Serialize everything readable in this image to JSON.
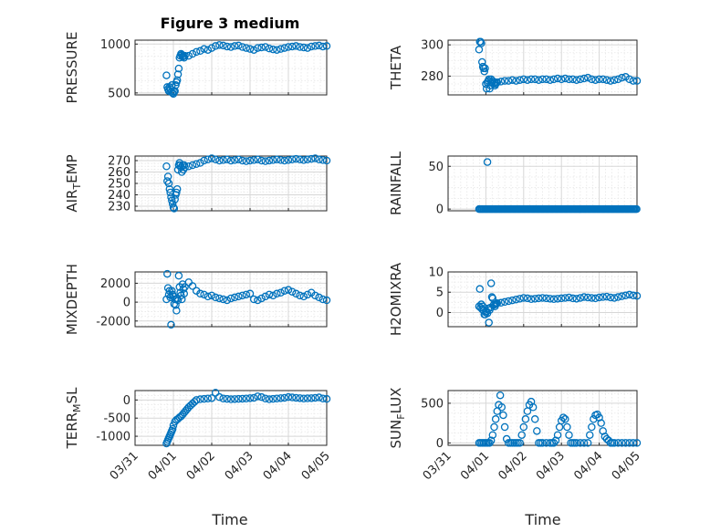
{
  "title": "Figure 3 medium",
  "xlabel": "Time",
  "x_tick_labels": [
    "03/31",
    "04/01",
    "04/02",
    "04/03",
    "04/04",
    "04/05"
  ],
  "colors": {
    "marker": "#0072BD",
    "axis": "#262626",
    "grid": "#d7d7d7",
    "background": "#ffffff"
  },
  "chart_data": [
    {
      "type": "scatter",
      "id": "pressure",
      "ylabel": "PRESSURE",
      "ylim": [
        480,
        1040
      ],
      "yticks": [
        500,
        1000
      ],
      "ytick_labels": [
        "500",
        "1000"
      ],
      "xlim": [
        0,
        5
      ],
      "x": [
        0.82,
        0.84,
        0.86,
        0.88,
        0.9,
        0.92,
        0.94,
        0.96,
        0.98,
        1.0,
        1.02,
        1.04,
        1.06,
        1.08,
        1.1,
        1.12,
        1.14,
        1.16,
        1.18,
        1.2,
        1.22,
        1.24,
        1.26,
        1.28,
        1.3,
        1.4,
        1.5,
        1.6,
        1.7,
        1.8,
        1.9,
        2.0,
        2.1,
        2.2,
        2.3,
        2.4,
        2.5,
        2.6,
        2.7,
        2.8,
        2.9,
        3.0,
        3.1,
        3.2,
        3.3,
        3.4,
        3.5,
        3.6,
        3.7,
        3.8,
        3.9,
        4.0,
        4.1,
        4.2,
        4.3,
        4.4,
        4.5,
        4.6,
        4.7,
        4.8,
        4.9,
        5.0
      ],
      "y": [
        680,
        560,
        540,
        520,
        560,
        540,
        510,
        580,
        500,
        490,
        510,
        520,
        580,
        610,
        630,
        690,
        750,
        860,
        880,
        900,
        890,
        870,
        880,
        860,
        880,
        880,
        900,
        920,
        930,
        950,
        940,
        960,
        980,
        990,
        985,
        975,
        970,
        980,
        985,
        970,
        960,
        950,
        940,
        960,
        965,
        970,
        955,
        945,
        940,
        950,
        960,
        970,
        975,
        980,
        970,
        965,
        960,
        975,
        980,
        985,
        975,
        980
      ]
    },
    {
      "type": "scatter",
      "id": "theta",
      "ylabel": "THETA",
      "ylim": [
        268,
        303
      ],
      "yticks": [
        280,
        300
      ],
      "ytick_labels": [
        "280",
        "300"
      ],
      "xlim": [
        0,
        5
      ],
      "x": [
        0.82,
        0.84,
        0.86,
        0.88,
        0.9,
        0.92,
        0.94,
        0.96,
        0.98,
        1.0,
        1.02,
        1.04,
        1.06,
        1.08,
        1.1,
        1.12,
        1.14,
        1.16,
        1.18,
        1.2,
        1.22,
        1.24,
        1.26,
        1.28,
        1.3,
        1.4,
        1.5,
        1.6,
        1.7,
        1.8,
        1.9,
        2.0,
        2.1,
        2.2,
        2.3,
        2.4,
        2.5,
        2.6,
        2.7,
        2.8,
        2.9,
        3.0,
        3.1,
        3.2,
        3.3,
        3.4,
        3.5,
        3.6,
        3.7,
        3.8,
        3.9,
        4.0,
        4.1,
        4.2,
        4.3,
        4.4,
        4.5,
        4.6,
        4.7,
        4.8,
        4.9,
        5.0
      ],
      "y": [
        297,
        302,
        302,
        301,
        289,
        286,
        285,
        283,
        285,
        275,
        272,
        276,
        277,
        278,
        272,
        274,
        278,
        276,
        277,
        275,
        276,
        274,
        275,
        276,
        276,
        276.5,
        277,
        277,
        277.5,
        277,
        277.5,
        278,
        277.5,
        278,
        278,
        277.5,
        278,
        278,
        277.5,
        278,
        278.5,
        278,
        278.5,
        278,
        278,
        277.5,
        278,
        278.5,
        279,
        278,
        277.5,
        278,
        278,
        277.5,
        277,
        277.5,
        278,
        279,
        279.5,
        278,
        277,
        277
      ]
    },
    {
      "type": "scatter",
      "id": "air_temp",
      "ylabel": "AIR_TEMP",
      "ylim": [
        226,
        274
      ],
      "yticks": [
        230,
        240,
        250,
        260,
        270
      ],
      "ytick_labels": [
        "230",
        "240",
        "250",
        "260",
        "270"
      ],
      "xlim": [
        0,
        5
      ],
      "x": [
        0.82,
        0.84,
        0.86,
        0.88,
        0.9,
        0.92,
        0.94,
        0.96,
        0.98,
        1.0,
        1.02,
        1.04,
        1.06,
        1.08,
        1.1,
        1.12,
        1.14,
        1.16,
        1.18,
        1.2,
        1.22,
        1.24,
        1.26,
        1.28,
        1.3,
        1.4,
        1.5,
        1.6,
        1.7,
        1.8,
        1.9,
        2.0,
        2.1,
        2.2,
        2.3,
        2.4,
        2.5,
        2.6,
        2.7,
        2.8,
        2.9,
        3.0,
        3.1,
        3.2,
        3.3,
        3.4,
        3.5,
        3.6,
        3.7,
        3.8,
        3.9,
        4.0,
        4.1,
        4.2,
        4.3,
        4.4,
        4.5,
        4.6,
        4.7,
        4.8,
        4.9,
        5.0
      ],
      "y": [
        265,
        252,
        256,
        250,
        245,
        242,
        238,
        235,
        232,
        229,
        228,
        236,
        240,
        242,
        245,
        262,
        266,
        268,
        266,
        264,
        260,
        266,
        262,
        266,
        264,
        265,
        266,
        267,
        268,
        270,
        271,
        272,
        271,
        270,
        270.5,
        271,
        270,
        270.5,
        271,
        270,
        269.5,
        270,
        270.5,
        271,
        270,
        269.5,
        270,
        270.5,
        271,
        270.5,
        270,
        270.5,
        271,
        271.5,
        271,
        270.5,
        271,
        271.5,
        272,
        271,
        270.5,
        270
      ]
    },
    {
      "type": "scatter",
      "id": "rainfall",
      "ylabel": "RAINFALL",
      "ylim": [
        -2,
        62
      ],
      "yticks": [
        0,
        50
      ],
      "ytick_labels": [
        "0",
        "50"
      ],
      "xlim": [
        0,
        5
      ],
      "x": [
        1.04
      ],
      "y": [
        55
      ],
      "series": [
        {
          "name": "zero_run",
          "x_range": [
            0.82,
            5.0
          ],
          "value": 0
        }
      ]
    },
    {
      "type": "scatter",
      "id": "mixdepth",
      "ylabel": "MIXDEPTH",
      "ylim": [
        -2600,
        3200
      ],
      "yticks": [
        -2000,
        0,
        2000
      ],
      "ytick_labels": [
        "-2000",
        "0",
        "2000"
      ],
      "xlim": [
        0,
        5
      ],
      "x": [
        0.82,
        0.84,
        0.86,
        0.88,
        0.9,
        0.92,
        0.94,
        0.96,
        0.98,
        1.0,
        1.02,
        1.04,
        1.06,
        1.08,
        1.1,
        1.12,
        1.14,
        1.16,
        1.18,
        1.2,
        1.22,
        1.24,
        1.26,
        1.28,
        1.3,
        1.4,
        1.5,
        1.6,
        1.7,
        1.8,
        1.9,
        2.0,
        2.1,
        2.2,
        2.3,
        2.4,
        2.5,
        2.6,
        2.7,
        2.8,
        2.9,
        3.0,
        3.1,
        3.2,
        3.3,
        3.4,
        3.5,
        3.6,
        3.7,
        3.8,
        3.9,
        4.0,
        4.1,
        4.2,
        4.3,
        4.4,
        4.5,
        4.6,
        4.7,
        4.8,
        4.9,
        5.0
      ],
      "y": [
        300,
        3000,
        1500,
        800,
        1200,
        500,
        -2400,
        1200,
        800,
        600,
        -200,
        300,
        -300,
        -900,
        400,
        200,
        2800,
        1600,
        1000,
        700,
        300,
        1900,
        1400,
        900,
        1600,
        2100,
        1700,
        1200,
        900,
        800,
        600,
        700,
        500,
        400,
        300,
        200,
        400,
        500,
        600,
        700,
        800,
        900,
        300,
        200,
        400,
        600,
        800,
        700,
        900,
        1000,
        1200,
        1300,
        1100,
        900,
        700,
        600,
        800,
        1000,
        700,
        500,
        300,
        200
      ]
    },
    {
      "type": "scatter",
      "id": "h2omixra",
      "ylabel": "H2OMIXRA",
      "ylim": [
        -3.5,
        10
      ],
      "yticks": [
        0,
        5,
        10
      ],
      "ytick_labels": [
        "0",
        "5",
        "10"
      ],
      "xlim": [
        0,
        5
      ],
      "x": [
        0.82,
        0.84,
        0.86,
        0.88,
        0.9,
        0.92,
        0.94,
        0.96,
        0.98,
        1.0,
        1.02,
        1.04,
        1.06,
        1.08,
        1.1,
        1.12,
        1.14,
        1.16,
        1.18,
        1.2,
        1.22,
        1.24,
        1.26,
        1.28,
        1.3,
        1.4,
        1.5,
        1.6,
        1.7,
        1.8,
        1.9,
        2.0,
        2.1,
        2.2,
        2.3,
        2.4,
        2.5,
        2.6,
        2.7,
        2.8,
        2.9,
        3.0,
        3.1,
        3.2,
        3.3,
        3.4,
        3.5,
        3.6,
        3.7,
        3.8,
        3.9,
        4.0,
        4.1,
        4.2,
        4.3,
        4.4,
        4.5,
        4.6,
        4.7,
        4.8,
        4.9,
        5.0
      ],
      "y": [
        1.5,
        5.8,
        1.2,
        2.0,
        0.8,
        1.5,
        0.5,
        -0.5,
        -0.5,
        0.0,
        0.3,
        -0.2,
        1.0,
        -2.5,
        0.6,
        1.2,
        7.2,
        3.8,
        3.5,
        1.8,
        2.0,
        1.5,
        2.0,
        2.2,
        2.3,
        2.4,
        2.6,
        2.8,
        3.0,
        3.2,
        3.4,
        3.6,
        3.5,
        3.3,
        3.4,
        3.5,
        3.6,
        3.5,
        3.4,
        3.3,
        3.4,
        3.5,
        3.6,
        3.7,
        3.5,
        3.4,
        3.6,
        3.8,
        3.7,
        3.6,
        3.5,
        3.7,
        3.8,
        3.9,
        3.7,
        3.6,
        3.8,
        4.0,
        4.2,
        4.4,
        4.2,
        4.1
      ]
    },
    {
      "type": "scatter",
      "id": "terr_msl",
      "ylabel": "TERR_MSL",
      "ylim": [
        -1250,
        260
      ],
      "yticks": [
        -1000,
        -500,
        0
      ],
      "ytick_labels": [
        "-1000",
        "-500",
        "0"
      ],
      "xlim": [
        0,
        5
      ],
      "x": [
        0.82,
        0.84,
        0.86,
        0.88,
        0.9,
        0.92,
        0.94,
        0.96,
        0.98,
        1.0,
        1.04,
        1.08,
        1.12,
        1.16,
        1.2,
        1.24,
        1.28,
        1.32,
        1.36,
        1.4,
        1.45,
        1.5,
        1.55,
        1.6,
        1.7,
        1.8,
        1.9,
        2.0,
        2.1,
        2.2,
        2.3,
        2.4,
        2.5,
        2.6,
        2.7,
        2.8,
        2.9,
        3.0,
        3.1,
        3.2,
        3.3,
        3.4,
        3.5,
        3.6,
        3.7,
        3.8,
        3.9,
        4.0,
        4.1,
        4.2,
        4.3,
        4.4,
        4.5,
        4.6,
        4.7,
        4.8,
        4.9,
        5.0
      ],
      "y": [
        -1200,
        -1150,
        -1100,
        -1050,
        -1000,
        -950,
        -900,
        -850,
        -800,
        -700,
        -600,
        -550,
        -520,
        -480,
        -450,
        -400,
        -350,
        -300,
        -250,
        -200,
        -150,
        -100,
        -50,
        0,
        20,
        30,
        40,
        50,
        200,
        80,
        40,
        30,
        20,
        25,
        30,
        35,
        40,
        50,
        60,
        100,
        80,
        40,
        20,
        30,
        40,
        50,
        60,
        80,
        70,
        60,
        50,
        40,
        45,
        50,
        60,
        70,
        40,
        30
      ]
    },
    {
      "type": "scatter",
      "id": "sun_flux",
      "ylabel": "SUN_FLUX",
      "ylim": [
        -30,
        660
      ],
      "yticks": [
        0,
        500
      ],
      "ytick_labels": [
        "0",
        "500"
      ],
      "xlim": [
        0,
        5
      ],
      "x": [
        0.82,
        0.86,
        0.9,
        0.94,
        0.98,
        1.02,
        1.06,
        1.1,
        1.14,
        1.18,
        1.22,
        1.26,
        1.3,
        1.34,
        1.38,
        1.42,
        1.46,
        1.5,
        1.55,
        1.6,
        1.65,
        1.7,
        1.75,
        1.8,
        1.85,
        1.9,
        1.95,
        2.0,
        2.05,
        2.1,
        2.15,
        2.2,
        2.25,
        2.3,
        2.35,
        2.4,
        2.45,
        2.5,
        2.6,
        2.7,
        2.75,
        2.8,
        2.85,
        2.9,
        2.95,
        3.0,
        3.05,
        3.1,
        3.15,
        3.2,
        3.25,
        3.3,
        3.35,
        3.4,
        3.5,
        3.6,
        3.7,
        3.75,
        3.8,
        3.85,
        3.9,
        3.95,
        4.0,
        4.05,
        4.1,
        4.15,
        4.2,
        4.25,
        4.3,
        4.35,
        4.4,
        4.5,
        4.6,
        4.7,
        4.8,
        4.9,
        5.0
      ],
      "y": [
        0,
        0,
        0,
        0,
        0,
        0,
        0,
        0,
        30,
        100,
        200,
        300,
        400,
        480,
        600,
        450,
        350,
        200,
        50,
        0,
        0,
        0,
        0,
        0,
        0,
        0,
        100,
        200,
        300,
        400,
        480,
        520,
        450,
        300,
        150,
        0,
        0,
        0,
        0,
        0,
        0,
        0,
        30,
        100,
        200,
        280,
        320,
        300,
        200,
        100,
        0,
        0,
        0,
        0,
        0,
        0,
        0,
        100,
        200,
        300,
        350,
        360,
        320,
        250,
        150,
        80,
        50,
        30,
        0,
        0,
        0,
        0,
        0,
        0,
        0,
        0,
        0
      ]
    }
  ]
}
